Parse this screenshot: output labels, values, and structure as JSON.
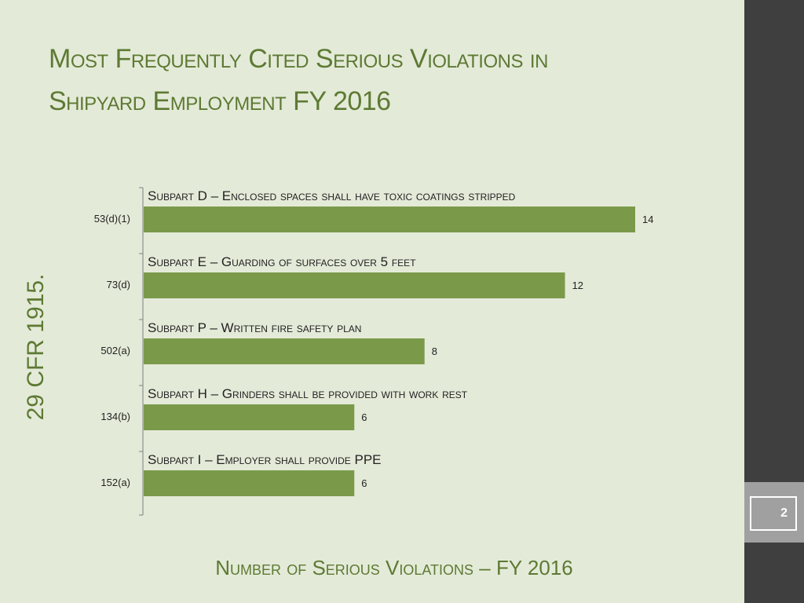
{
  "slide": {
    "title_line1": "Most Frequently Cited Serious Violations in",
    "title_line2": "Shipyard Employment  FY 2016",
    "side_label": "29 CFR 1915.",
    "x_caption": "Number of Serious Violations – FY 2016",
    "page_number": "2"
  },
  "colors": {
    "bar": "#7a9a4a",
    "accent_text": "#5d7a33",
    "background": "#e4ead8",
    "band": "#3f3f3f"
  },
  "chart_data": {
    "type": "bar",
    "orientation": "horizontal",
    "categories": [
      "53(d)(1)",
      "73(d)",
      "502(a)",
      "134(b)",
      "152(a)"
    ],
    "values": [
      14,
      12,
      8,
      6,
      6
    ],
    "annotations": [
      "Subpart D – Enclosed spaces shall have toxic coatings stripped",
      "Subpart E – Guarding of surfaces over 5 feet",
      "Subpart P – Written fire safety plan",
      "Subpart H – Grinders shall be provided with work rest",
      "Subpart I – Employer shall provide PPE"
    ],
    "xlabel": "Number of Serious Violations – FY 2016",
    "ylabel": "29 CFR 1915.",
    "xlim": [
      0,
      14
    ],
    "grid": false,
    "data_labels": true,
    "legend": "none"
  }
}
